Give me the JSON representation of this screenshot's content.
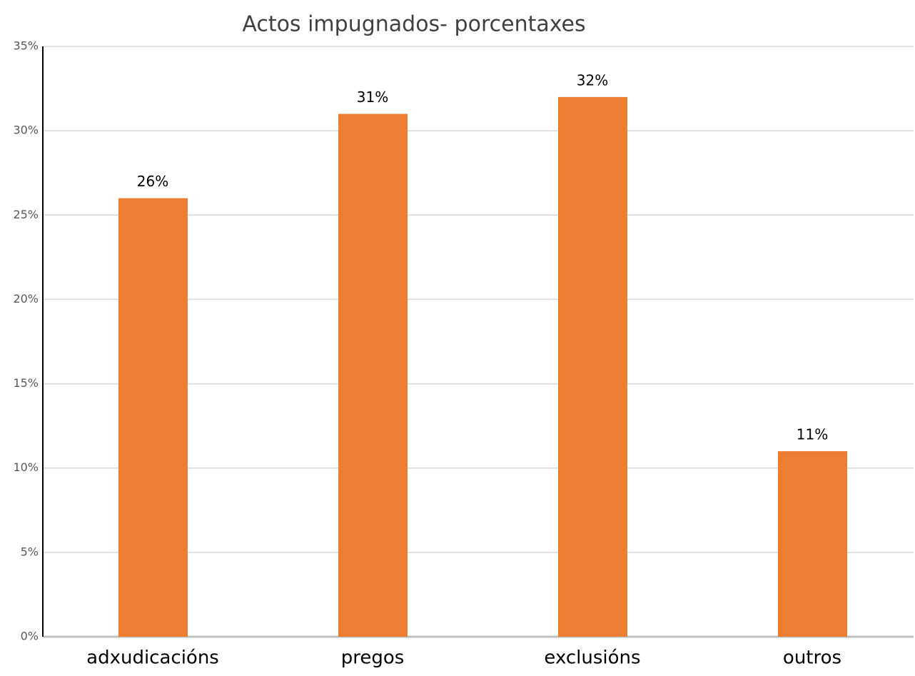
{
  "chart_data": {
    "type": "bar",
    "title": "Actos impugnados- porcentaxes",
    "categories": [
      "adxudicacións",
      "pregos",
      "exclusións",
      "outros"
    ],
    "values": [
      26,
      31,
      32,
      11
    ],
    "value_labels": [
      "26%",
      "31%",
      "32%",
      "11%"
    ],
    "color": "#ed7d31",
    "ylim": [
      0,
      35
    ],
    "yticks": [
      {
        "value": 0,
        "label": "0%"
      },
      {
        "value": 5,
        "label": "5%"
      },
      {
        "value": 10,
        "label": "10%"
      },
      {
        "value": 15,
        "label": "15%"
      },
      {
        "value": 20,
        "label": "20%"
      },
      {
        "value": 25,
        "label": "25%"
      },
      {
        "value": 30,
        "label": "30%"
      },
      {
        "value": 35,
        "label": "35%"
      }
    ],
    "grid": true
  }
}
